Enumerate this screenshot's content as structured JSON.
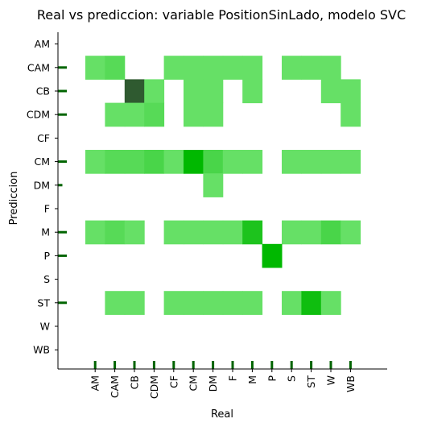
{
  "chart_data": {
    "type": "heatmap",
    "title": "Real vs prediccion: variable PositionSinLado, modelo SVC",
    "xlabel": "Real",
    "ylabel": "Prediccion",
    "x_categories": [
      "AM",
      "CAM",
      "CB",
      "CDM",
      "CF",
      "CM",
      "DM",
      "F",
      "M",
      "P",
      "S",
      "ST",
      "W",
      "WB"
    ],
    "y_categories": [
      "AM",
      "CAM",
      "CB",
      "CDM",
      "CF",
      "CM",
      "DM",
      "F",
      "M",
      "P",
      "S",
      "ST",
      "W",
      "WB"
    ],
    "cells": [
      {
        "x": "AM",
        "y": "CAM",
        "v": 1
      },
      {
        "x": "CAM",
        "y": "CAM",
        "v": 2
      },
      {
        "x": "CF",
        "y": "CAM",
        "v": 1
      },
      {
        "x": "CM",
        "y": "CAM",
        "v": 1
      },
      {
        "x": "DM",
        "y": "CAM",
        "v": 1
      },
      {
        "x": "F",
        "y": "CAM",
        "v": 1
      },
      {
        "x": "M",
        "y": "CAM",
        "v": 1
      },
      {
        "x": "S",
        "y": "CAM",
        "v": 1
      },
      {
        "x": "ST",
        "y": "CAM",
        "v": 1
      },
      {
        "x": "W",
        "y": "CAM",
        "v": 1
      },
      {
        "x": "CB",
        "y": "CB",
        "v": 30
      },
      {
        "x": "CDM",
        "y": "CB",
        "v": 1
      },
      {
        "x": "CM",
        "y": "CB",
        "v": 1
      },
      {
        "x": "DM",
        "y": "CB",
        "v": 1
      },
      {
        "x": "M",
        "y": "CB",
        "v": 1
      },
      {
        "x": "W",
        "y": "CB",
        "v": 1
      },
      {
        "x": "WB",
        "y": "CB",
        "v": 1
      },
      {
        "x": "CAM",
        "y": "CDM",
        "v": 1
      },
      {
        "x": "CB",
        "y": "CDM",
        "v": 1
      },
      {
        "x": "CDM",
        "y": "CDM",
        "v": 2
      },
      {
        "x": "CM",
        "y": "CDM",
        "v": 1
      },
      {
        "x": "DM",
        "y": "CDM",
        "v": 1
      },
      {
        "x": "WB",
        "y": "CDM",
        "v": 1
      },
      {
        "x": "AM",
        "y": "CM",
        "v": 1
      },
      {
        "x": "CAM",
        "y": "CM",
        "v": 2
      },
      {
        "x": "CB",
        "y": "CM",
        "v": 2
      },
      {
        "x": "CDM",
        "y": "CM",
        "v": 3
      },
      {
        "x": "CF",
        "y": "CM",
        "v": 1
      },
      {
        "x": "CM",
        "y": "CM",
        "v": 8
      },
      {
        "x": "DM",
        "y": "CM",
        "v": 3
      },
      {
        "x": "F",
        "y": "CM",
        "v": 1
      },
      {
        "x": "M",
        "y": "CM",
        "v": 1
      },
      {
        "x": "S",
        "y": "CM",
        "v": 1
      },
      {
        "x": "ST",
        "y": "CM",
        "v": 1
      },
      {
        "x": "W",
        "y": "CM",
        "v": 1
      },
      {
        "x": "WB",
        "y": "CM",
        "v": 1
      },
      {
        "x": "DM",
        "y": "DM",
        "v": 1
      },
      {
        "x": "AM",
        "y": "M",
        "v": 1
      },
      {
        "x": "CAM",
        "y": "M",
        "v": 2
      },
      {
        "x": "CB",
        "y": "M",
        "v": 1
      },
      {
        "x": "CF",
        "y": "M",
        "v": 1
      },
      {
        "x": "CM",
        "y": "M",
        "v": 1
      },
      {
        "x": "DM",
        "y": "M",
        "v": 1
      },
      {
        "x": "F",
        "y": "M",
        "v": 1
      },
      {
        "x": "M",
        "y": "M",
        "v": 6
      },
      {
        "x": "S",
        "y": "M",
        "v": 1
      },
      {
        "x": "ST",
        "y": "M",
        "v": 1
      },
      {
        "x": "W",
        "y": "M",
        "v": 3
      },
      {
        "x": "WB",
        "y": "M",
        "v": 1
      },
      {
        "x": "P",
        "y": "P",
        "v": 8
      },
      {
        "x": "CAM",
        "y": "ST",
        "v": 1
      },
      {
        "x": "CB",
        "y": "ST",
        "v": 1
      },
      {
        "x": "CF",
        "y": "ST",
        "v": 1
      },
      {
        "x": "CM",
        "y": "ST",
        "v": 1
      },
      {
        "x": "DM",
        "y": "ST",
        "v": 1
      },
      {
        "x": "F",
        "y": "ST",
        "v": 1
      },
      {
        "x": "M",
        "y": "ST",
        "v": 1
      },
      {
        "x": "S",
        "y": "ST",
        "v": 1
      },
      {
        "x": "ST",
        "y": "ST",
        "v": 7
      },
      {
        "x": "W",
        "y": "ST",
        "v": 1
      }
    ],
    "x_marginal": [
      1,
      1,
      1,
      1,
      1,
      1,
      1,
      1,
      1,
      1,
      1,
      1,
      1,
      1
    ],
    "y_marginal": [
      0,
      1,
      1,
      1,
      0,
      1,
      0.5,
      0,
      1,
      1,
      0,
      1,
      0,
      0
    ],
    "grid": false,
    "colors": {
      "low": "#66e066",
      "high": "#00b800",
      "max": "#2f5a30",
      "marginal": "#006400"
    }
  }
}
